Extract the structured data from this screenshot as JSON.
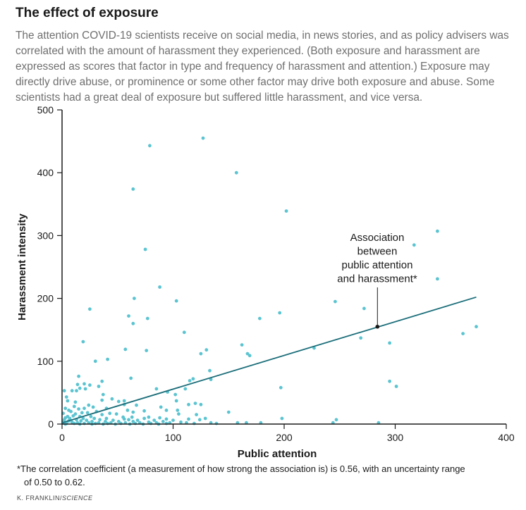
{
  "header": {
    "title": "The effect of exposure",
    "subtitle": "The attention COVID-19 scientists receive on social media, in news stories, and as policy advisers was correlated with the amount of harassment they experienced. (Both exposure and harassment are expressed as scores that factor in type and frequency of harassment and attention.) Exposure may directly drive abuse, or prominence or some other factor may drive both exposure and abuse. Some scientists had a great deal of exposure but suffered little harassment, and vice versa."
  },
  "footer": {
    "footnote_line1": "*The correlation coefficient (a measurement of how strong the association is) is 0.56, with an uncertainty range",
    "footnote_line2": "of 0.50 to 0.62.",
    "credit_author": "K. FRANKLIN/",
    "credit_source": "SCIENCE"
  },
  "colors": {
    "points": "#5bc4d1",
    "trend_line": "#1b6e7a",
    "marker": "#1a1a1a"
  },
  "chart_data": {
    "type": "scatter",
    "xlabel": "Public attention",
    "ylabel": "Harassment intensity",
    "xlim": [
      0,
      400
    ],
    "ylim": [
      0,
      500
    ],
    "xticks": [
      0,
      100,
      200,
      300,
      400
    ],
    "yticks": [
      0,
      100,
      200,
      300,
      400,
      500
    ],
    "grid": false,
    "annotation": {
      "lines": [
        "Association",
        "between",
        "public attention",
        "and harassment*"
      ],
      "point": [
        284,
        155
      ]
    },
    "trend_line": {
      "x": [
        0,
        373
      ],
      "y": [
        2,
        202
      ]
    },
    "points": [
      [
        127,
        455
      ],
      [
        79,
        443
      ],
      [
        157,
        400
      ],
      [
        64,
        374
      ],
      [
        202,
        339
      ],
      [
        338,
        307
      ],
      [
        317,
        285
      ],
      [
        75,
        278
      ],
      [
        338,
        231
      ],
      [
        88,
        218
      ],
      [
        65,
        200
      ],
      [
        103,
        196
      ],
      [
        246,
        195
      ],
      [
        25,
        183
      ],
      [
        272,
        184
      ],
      [
        196,
        177
      ],
      [
        60,
        172
      ],
      [
        77,
        168
      ],
      [
        178,
        168
      ],
      [
        64,
        160
      ],
      [
        373,
        155
      ],
      [
        361,
        144
      ],
      [
        110,
        146
      ],
      [
        19,
        131
      ],
      [
        295,
        129
      ],
      [
        269,
        137
      ],
      [
        162,
        126
      ],
      [
        227,
        121
      ],
      [
        57,
        119
      ],
      [
        76,
        117
      ],
      [
        130,
        118
      ],
      [
        125,
        112
      ],
      [
        167,
        112
      ],
      [
        169,
        109
      ],
      [
        41,
        103
      ],
      [
        30,
        100
      ],
      [
        133,
        85
      ],
      [
        15,
        76
      ],
      [
        62,
        73
      ],
      [
        118,
        72
      ],
      [
        115,
        69
      ],
      [
        134,
        71
      ],
      [
        36,
        68
      ],
      [
        20,
        64
      ],
      [
        295,
        68
      ],
      [
        14,
        63
      ],
      [
        25,
        62
      ],
      [
        301,
        60
      ],
      [
        33,
        60
      ],
      [
        16,
        57
      ],
      [
        21,
        56
      ],
      [
        111,
        56
      ],
      [
        85,
        56
      ],
      [
        197,
        58
      ],
      [
        9,
        53
      ],
      [
        2,
        53
      ],
      [
        13,
        53
      ],
      [
        95,
        51
      ],
      [
        102,
        47
      ],
      [
        37,
        47
      ],
      [
        4,
        43
      ],
      [
        45,
        40
      ],
      [
        36,
        38
      ],
      [
        51,
        36
      ],
      [
        56,
        37
      ],
      [
        5,
        37
      ],
      [
        103,
        37
      ],
      [
        12,
        35
      ],
      [
        120,
        33
      ],
      [
        125,
        31
      ],
      [
        114,
        31
      ],
      [
        24,
        30
      ],
      [
        56,
        31
      ],
      [
        67,
        30
      ],
      [
        11,
        28
      ],
      [
        28,
        27
      ],
      [
        89,
        27
      ],
      [
        3,
        25
      ],
      [
        20,
        25
      ],
      [
        40,
        25
      ],
      [
        15,
        24
      ],
      [
        6,
        22
      ],
      [
        59,
        22
      ],
      [
        74,
        21
      ],
      [
        94,
        22
      ],
      [
        104,
        22
      ],
      [
        31,
        20
      ],
      [
        8,
        20
      ],
      [
        64,
        19
      ],
      [
        150,
        19
      ],
      [
        18,
        18
      ],
      [
        23,
        18
      ],
      [
        43,
        17
      ],
      [
        1,
        17
      ],
      [
        12,
        16
      ],
      [
        36,
        15
      ],
      [
        49,
        16
      ],
      [
        105,
        16
      ],
      [
        121,
        15
      ],
      [
        10,
        13
      ],
      [
        5,
        12
      ],
      [
        16,
        12
      ],
      [
        26,
        12
      ],
      [
        55,
        11
      ],
      [
        63,
        11
      ],
      [
        78,
        11
      ],
      [
        88,
        10
      ],
      [
        3,
        10
      ],
      [
        7,
        9
      ],
      [
        19,
        9
      ],
      [
        29,
        9
      ],
      [
        40,
        9
      ],
      [
        56,
        8
      ],
      [
        74,
        9
      ],
      [
        94,
        8
      ],
      [
        114,
        8
      ],
      [
        129,
        9
      ],
      [
        198,
        9
      ],
      [
        2,
        7
      ],
      [
        13,
        7
      ],
      [
        22,
        6
      ],
      [
        34,
        7
      ],
      [
        46,
        6
      ],
      [
        60,
        7
      ],
      [
        68,
        6
      ],
      [
        83,
        6
      ],
      [
        100,
        6
      ],
      [
        124,
        7
      ],
      [
        6,
        5
      ],
      [
        17,
        5
      ],
      [
        27,
        4
      ],
      [
        39,
        4
      ],
      [
        51,
        4
      ],
      [
        64,
        4
      ],
      [
        78,
        3
      ],
      [
        91,
        4
      ],
      [
        107,
        3
      ],
      [
        247,
        7
      ],
      [
        1,
        3
      ],
      [
        9,
        3
      ],
      [
        14,
        2
      ],
      [
        24,
        2
      ],
      [
        33,
        2
      ],
      [
        44,
        2
      ],
      [
        57,
        2
      ],
      [
        70,
        2
      ],
      [
        85,
        2
      ],
      [
        97,
        2
      ],
      [
        112,
        2
      ],
      [
        134,
        2
      ],
      [
        158,
        2
      ],
      [
        166,
        2
      ],
      [
        179,
        2
      ],
      [
        244,
        2
      ],
      [
        285,
        2
      ],
      [
        4,
        1
      ],
      [
        11,
        1
      ],
      [
        20,
        1
      ],
      [
        30,
        1
      ],
      [
        41,
        1
      ],
      [
        53,
        1
      ],
      [
        66,
        1
      ],
      [
        80,
        1
      ],
      [
        94,
        1
      ],
      [
        119,
        1
      ],
      [
        139,
        1
      ],
      [
        3,
        0
      ],
      [
        16,
        0
      ],
      [
        27,
        0
      ],
      [
        37,
        0
      ],
      [
        48,
        0
      ],
      [
        61,
        0
      ],
      [
        73,
        0
      ],
      [
        87,
        0
      ]
    ]
  }
}
